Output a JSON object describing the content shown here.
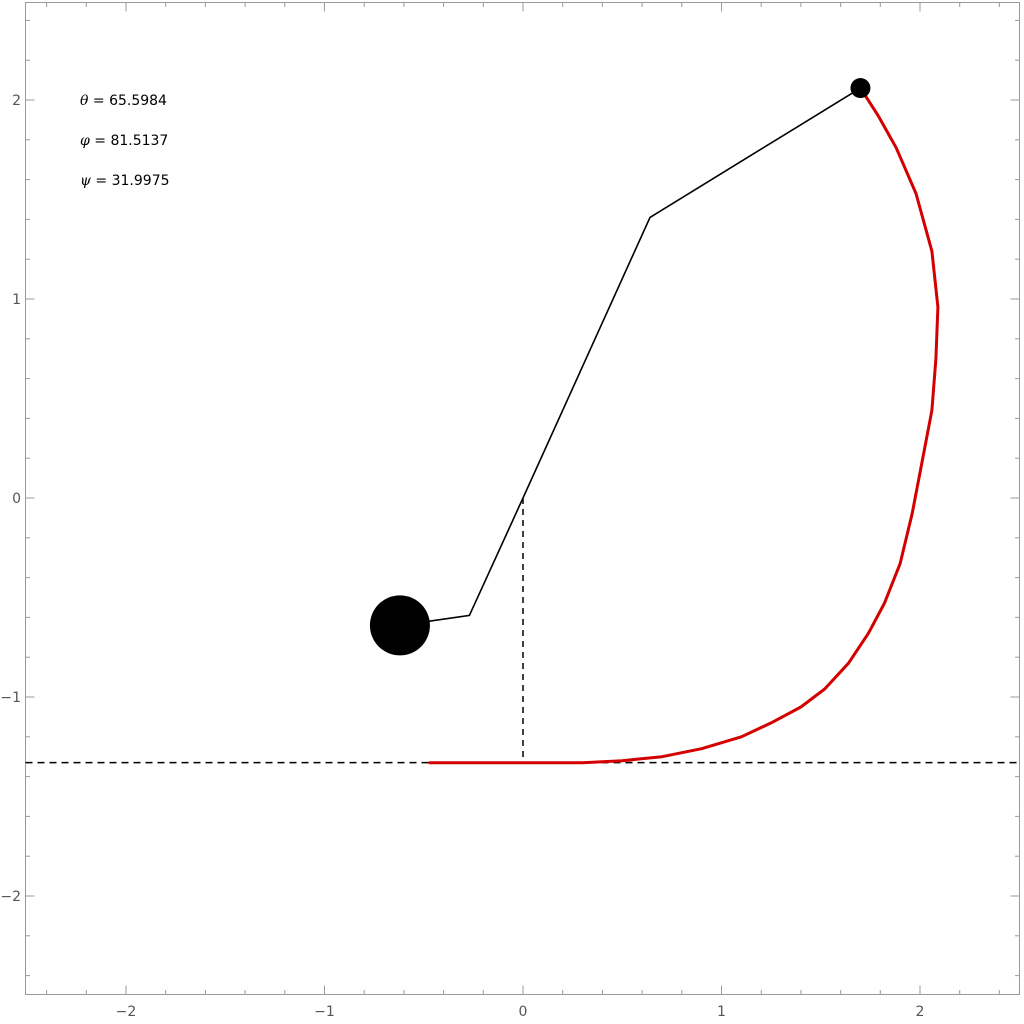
{
  "chart_data": {
    "type": "scatter",
    "title": "",
    "xlabel": "",
    "ylabel": "",
    "xlim": [
      -2.5,
      2.5
    ],
    "ylim": [
      -2.5,
      2.5
    ],
    "grid": false,
    "x_ticks": [
      -2,
      -1,
      0,
      1,
      2
    ],
    "y_ticks": [
      -2,
      -1,
      0,
      1,
      2
    ],
    "x_tick_labels": [
      "−2",
      "−1",
      "0",
      "1",
      "2"
    ],
    "y_tick_labels": [
      "−2",
      "−1",
      "0",
      "1",
      "2"
    ],
    "minor_tick_step": 0.2,
    "ground_level": -1.33,
    "pivot": [
      0,
      0
    ],
    "pendulum_links": [
      [
        -0.62,
        -0.64
      ],
      [
        -0.27,
        -0.59
      ],
      [
        0,
        0
      ],
      [
        0.64,
        1.41
      ],
      [
        1.7,
        2.06
      ]
    ],
    "large_mass": [
      -0.62,
      -0.64
    ],
    "small_mass": [
      1.7,
      2.06
    ],
    "trace": [
      [
        -0.47,
        -1.33
      ],
      [
        0.0,
        -1.33
      ],
      [
        0.3,
        -1.33
      ],
      [
        0.5,
        -1.32
      ],
      [
        0.7,
        -1.3
      ],
      [
        0.9,
        -1.26
      ],
      [
        1.1,
        -1.2
      ],
      [
        1.25,
        -1.13
      ],
      [
        1.4,
        -1.05
      ],
      [
        1.52,
        -0.96
      ],
      [
        1.64,
        -0.83
      ],
      [
        1.74,
        -0.68
      ],
      [
        1.82,
        -0.53
      ],
      [
        1.9,
        -0.33
      ],
      [
        1.96,
        -0.08
      ],
      [
        2.01,
        0.18
      ],
      [
        2.06,
        0.44
      ],
      [
        2.08,
        0.7
      ],
      [
        2.09,
        0.96
      ],
      [
        2.06,
        1.24
      ],
      [
        1.98,
        1.53
      ],
      [
        1.88,
        1.76
      ],
      [
        1.79,
        1.92
      ],
      [
        1.7,
        2.06
      ]
    ],
    "colors": {
      "trace": "#d40000",
      "structure": "#000000",
      "frame": "#9a9a9a",
      "tick_text": "#555555"
    }
  },
  "annotations": {
    "theta": {
      "symbol": "θ",
      "text": " = 65.5984"
    },
    "phi": {
      "symbol": "φ",
      "text": " = 81.5137"
    },
    "psi": {
      "symbol": "ψ",
      "text": " = 31.9975"
    }
  }
}
